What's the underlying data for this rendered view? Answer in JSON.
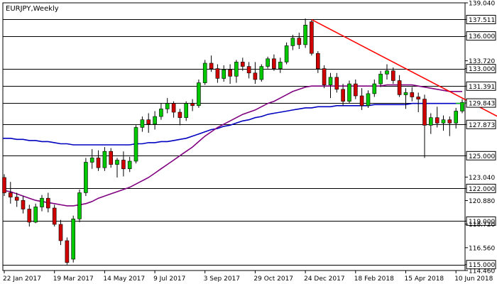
{
  "chart_data": {
    "type": "candlestick",
    "title": "EURJPY,Weekly",
    "xlabel": "",
    "ylabel": "",
    "ylim": [
      114.46,
      139.04
    ],
    "y_ticks": [
      "139.040",
      "137.511",
      "136.000",
      "133.720",
      "133.000",
      "131.391",
      "129.843",
      "127.873",
      "125.000",
      "123.040",
      "122.000",
      "120.880",
      "119.000",
      "118.720",
      "116.560",
      "115.000",
      "114.460"
    ],
    "x_ticks": [
      {
        "label": "22 Jan 2017",
        "index": 0
      },
      {
        "label": "19 Mar 2017",
        "index": 8
      },
      {
        "label": "14 May 2017",
        "index": 16
      },
      {
        "label": "9 Jul 2017",
        "index": 24
      },
      {
        "label": "3 Sep 2017",
        "index": 32
      },
      {
        "label": "29 Oct 2017",
        "index": 40
      },
      {
        "label": "24 Dec 2017",
        "index": 48
      },
      {
        "label": "18 Feb 2018",
        "index": 56
      },
      {
        "label": "15 Apr 2018",
        "index": 64
      },
      {
        "label": "10 Jun 2018",
        "index": 72
      }
    ],
    "colors": {
      "bull": "#00c800",
      "bear": "#d10000",
      "wick": "#000000",
      "grid": "#000000",
      "ma_purple": "#800080",
      "ma_blue": "#0000c0",
      "trendline": "#ff0000",
      "line_green": "#00c800",
      "current_label_bg": "#ffffff"
    },
    "horizontal_levels": [
      137.511,
      136.0,
      133.0,
      131.391,
      129.843,
      127.873,
      125.0,
      122.0,
      119.0,
      115.0
    ],
    "green_line_level": 129.843,
    "current_price_label": "137.511",
    "trendline": {
      "from": {
        "index": 49,
        "price": 137.5
      },
      "to": {
        "index": 79,
        "price": 128.5
      }
    },
    "series": [
      {
        "name": "candles",
        "ohlc": [
          [
            123.0,
            123.3,
            121.3,
            121.6
          ],
          [
            121.6,
            122.6,
            120.6,
            121.2
          ],
          [
            121.2,
            121.6,
            120.3,
            120.9
          ],
          [
            120.9,
            121.3,
            119.7,
            120.1
          ],
          [
            120.1,
            120.5,
            118.5,
            118.9
          ],
          [
            118.9,
            120.6,
            118.8,
            120.3
          ],
          [
            120.3,
            121.4,
            119.9,
            121.1
          ],
          [
            121.1,
            121.6,
            119.8,
            120.2
          ],
          [
            120.2,
            120.5,
            118.5,
            118.7
          ],
          [
            118.7,
            119.1,
            116.8,
            117.2
          ],
          [
            117.2,
            117.5,
            115.0,
            115.2
          ],
          [
            115.5,
            119.5,
            115.2,
            119.2
          ],
          [
            119.2,
            121.9,
            118.9,
            121.6
          ],
          [
            121.6,
            124.8,
            121.3,
            124.4
          ],
          [
            124.4,
            125.6,
            123.8,
            124.8
          ],
          [
            124.8,
            125.5,
            123.6,
            123.9
          ],
          [
            123.9,
            125.8,
            123.6,
            125.4
          ],
          [
            125.4,
            125.7,
            123.9,
            124.2
          ],
          [
            124.2,
            124.8,
            123.0,
            124.6
          ],
          [
            124.6,
            125.4,
            123.1,
            123.8
          ],
          [
            123.8,
            124.9,
            123.5,
            124.5
          ],
          [
            124.5,
            127.8,
            124.3,
            127.6
          ],
          [
            127.6,
            128.6,
            127.2,
            128.3
          ],
          [
            128.3,
            128.9,
            127.1,
            127.9
          ],
          [
            127.9,
            129.1,
            127.4,
            128.6
          ],
          [
            128.6,
            129.8,
            128.3,
            129.3
          ],
          [
            129.3,
            130.3,
            128.9,
            129.8
          ],
          [
            129.8,
            130.0,
            128.5,
            129.0
          ],
          [
            129.0,
            129.3,
            127.8,
            128.5
          ],
          [
            128.5,
            130.0,
            128.2,
            129.8
          ],
          [
            129.8,
            130.2,
            129.1,
            129.6
          ],
          [
            129.6,
            132.0,
            129.4,
            131.7
          ],
          [
            131.7,
            133.8,
            131.5,
            133.5
          ],
          [
            133.5,
            134.2,
            132.7,
            133.0
          ],
          [
            133.0,
            133.4,
            131.7,
            132.1
          ],
          [
            132.1,
            133.3,
            131.8,
            132.9
          ],
          [
            132.9,
            133.4,
            131.6,
            132.3
          ],
          [
            132.3,
            133.8,
            131.7,
            133.6
          ],
          [
            133.6,
            134.0,
            132.8,
            133.2
          ],
          [
            133.2,
            133.6,
            132.1,
            132.6
          ],
          [
            132.6,
            133.6,
            131.6,
            132.0
          ],
          [
            132.0,
            133.4,
            131.8,
            133.2
          ],
          [
            133.2,
            134.1,
            133.0,
            133.9
          ],
          [
            133.9,
            134.3,
            132.8,
            133.0
          ],
          [
            133.0,
            134.0,
            132.6,
            133.6
          ],
          [
            133.6,
            135.4,
            133.4,
            135.1
          ],
          [
            135.1,
            136.1,
            134.7,
            135.8
          ],
          [
            135.8,
            136.3,
            134.8,
            135.2
          ],
          [
            135.2,
            137.6,
            134.9,
            137.0
          ],
          [
            137.3,
            137.5,
            134.2,
            134.4
          ],
          [
            134.4,
            134.6,
            132.6,
            133.0
          ],
          [
            133.0,
            133.3,
            131.2,
            131.5
          ],
          [
            131.5,
            132.6,
            130.3,
            132.2
          ],
          [
            132.2,
            132.6,
            130.8,
            131.1
          ],
          [
            131.1,
            131.6,
            129.6,
            130.0
          ],
          [
            130.0,
            131.9,
            129.8,
            131.6
          ],
          [
            131.6,
            132.0,
            130.2,
            130.5
          ],
          [
            130.5,
            131.2,
            129.2,
            129.6
          ],
          [
            129.6,
            131.0,
            129.4,
            130.7
          ],
          [
            130.7,
            132.0,
            130.4,
            131.6
          ],
          [
            131.6,
            132.8,
            131.3,
            132.5
          ],
          [
            132.5,
            133.4,
            132.0,
            132.8
          ],
          [
            132.8,
            133.1,
            131.6,
            131.9
          ],
          [
            131.9,
            132.4,
            130.4,
            130.6
          ],
          [
            130.6,
            131.2,
            129.3,
            130.8
          ],
          [
            130.8,
            131.3,
            130.0,
            130.4
          ],
          [
            130.4,
            130.8,
            129.0,
            130.2
          ],
          [
            130.2,
            130.6,
            124.8,
            127.8
          ],
          [
            127.8,
            128.9,
            127.0,
            128.5
          ],
          [
            128.5,
            129.5,
            127.6,
            128.0
          ],
          [
            128.0,
            128.7,
            127.3,
            128.3
          ],
          [
            128.3,
            128.6,
            126.8,
            128.0
          ],
          [
            128.0,
            129.4,
            127.5,
            129.1
          ],
          [
            129.1,
            130.2,
            128.9,
            129.9
          ]
        ]
      },
      {
        "name": "ma_purple",
        "values": [
          121.8,
          121.7,
          121.5,
          121.3,
          121.1,
          120.9,
          120.8,
          120.7,
          120.6,
          120.5,
          120.4,
          120.4,
          120.5,
          120.6,
          120.8,
          121.1,
          121.3,
          121.5,
          121.7,
          121.9,
          122.1,
          122.4,
          122.7,
          123.0,
          123.4,
          123.8,
          124.2,
          124.6,
          125.0,
          125.4,
          125.8,
          126.3,
          126.8,
          127.2,
          127.6,
          127.9,
          128.2,
          128.5,
          128.8,
          129.0,
          129.2,
          129.5,
          129.8,
          130.0,
          130.3,
          130.6,
          130.9,
          131.1,
          131.3,
          131.4,
          131.4,
          131.4,
          131.4,
          131.4,
          131.4,
          131.4,
          131.4,
          131.4,
          131.4,
          131.4,
          131.4,
          131.5,
          131.5,
          131.5,
          131.5,
          131.5,
          131.4,
          131.3,
          131.2,
          131.1,
          131.0,
          130.9,
          130.9,
          130.9
        ]
      },
      {
        "name": "ma_blue",
        "values": [
          126.6,
          126.6,
          126.5,
          126.5,
          126.4,
          126.4,
          126.3,
          126.3,
          126.2,
          126.1,
          126.1,
          126.0,
          126.0,
          126.0,
          126.0,
          126.0,
          126.0,
          126.0,
          126.0,
          126.0,
          126.0,
          126.1,
          126.1,
          126.2,
          126.2,
          126.3,
          126.3,
          126.4,
          126.5,
          126.6,
          126.8,
          127.0,
          127.2,
          127.4,
          127.5,
          127.7,
          127.8,
          128.0,
          128.2,
          128.3,
          128.5,
          128.6,
          128.8,
          128.9,
          129.0,
          129.1,
          129.2,
          129.3,
          129.4,
          129.4,
          129.5,
          129.5,
          129.5,
          129.6,
          129.6,
          129.6,
          129.6,
          129.6,
          129.6,
          129.7,
          129.7,
          129.7,
          129.7,
          129.7,
          129.7,
          129.8,
          129.8,
          129.8,
          129.8,
          129.8,
          129.8,
          129.8,
          129.8,
          129.8
        ]
      }
    ]
  }
}
